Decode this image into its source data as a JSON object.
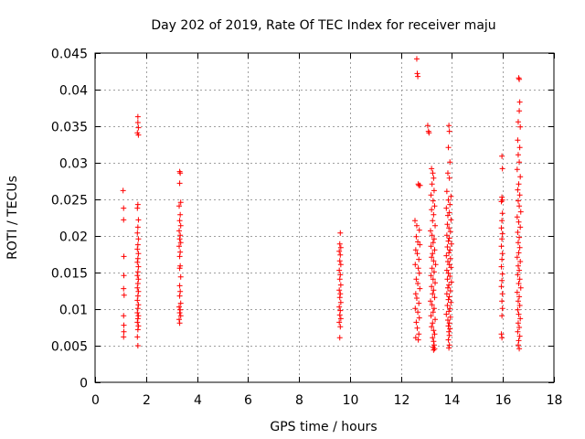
{
  "chart_data": {
    "type": "scatter",
    "title": "Day 202 of 2019, Rate Of TEC Index for receiver maju",
    "xlabel": "GPS time / hours",
    "ylabel": "ROTI / TECUs",
    "xlim": [
      0,
      18
    ],
    "ylim": [
      0,
      0.045
    ],
    "xticks": [
      0,
      2,
      4,
      6,
      8,
      10,
      12,
      14,
      16,
      18
    ],
    "xtick_labels": [
      "0",
      "2",
      "4",
      "6",
      "8",
      "10",
      "12",
      "14",
      "16",
      "18"
    ],
    "yticks": [
      0,
      0.005,
      0.01,
      0.015,
      0.02,
      0.025,
      0.03,
      0.035,
      0.04,
      0.045
    ],
    "ytick_labels": [
      "0",
      "0.005",
      "0.01",
      "0.015",
      "0.02",
      "0.025",
      "0.03",
      "0.035",
      "0.04",
      "0.045"
    ],
    "grid": true,
    "marker": "+",
    "color": "#ff0000",
    "series": [
      {
        "name": "ROTI",
        "points": [
          [
            1.1,
            0.0262
          ],
          [
            1.12,
            0.0238
          ],
          [
            1.12,
            0.0222
          ],
          [
            1.13,
            0.0172
          ],
          [
            1.13,
            0.0146
          ],
          [
            1.12,
            0.0128
          ],
          [
            1.14,
            0.0119
          ],
          [
            1.12,
            0.0091
          ],
          [
            1.13,
            0.0078
          ],
          [
            1.13,
            0.0069
          ],
          [
            1.12,
            0.0062
          ],
          [
            1.68,
            0.0363
          ],
          [
            1.68,
            0.0355
          ],
          [
            1.7,
            0.0348
          ],
          [
            1.66,
            0.0341
          ],
          [
            1.7,
            0.0338
          ],
          [
            1.68,
            0.0243
          ],
          [
            1.66,
            0.0238
          ],
          [
            1.7,
            0.0222
          ],
          [
            1.68,
            0.0212
          ],
          [
            1.66,
            0.0204
          ],
          [
            1.7,
            0.0196
          ],
          [
            1.68,
            0.0188
          ],
          [
            1.66,
            0.0182
          ],
          [
            1.7,
            0.0176
          ],
          [
            1.68,
            0.0169
          ],
          [
            1.66,
            0.0164
          ],
          [
            1.7,
            0.0158
          ],
          [
            1.68,
            0.0151
          ],
          [
            1.66,
            0.0146
          ],
          [
            1.7,
            0.0141
          ],
          [
            1.68,
            0.0135
          ],
          [
            1.66,
            0.0129
          ],
          [
            1.7,
            0.0124
          ],
          [
            1.68,
            0.0118
          ],
          [
            1.66,
            0.0112
          ],
          [
            1.7,
            0.0106
          ],
          [
            1.68,
            0.0101
          ],
          [
            1.66,
            0.0095
          ],
          [
            1.7,
            0.0091
          ],
          [
            1.68,
            0.0087
          ],
          [
            1.66,
            0.0082
          ],
          [
            1.7,
            0.0077
          ],
          [
            1.68,
            0.0072
          ],
          [
            1.66,
            0.0062
          ],
          [
            1.68,
            0.005
          ],
          [
            3.32,
            0.0288
          ],
          [
            3.34,
            0.0286
          ],
          [
            3.32,
            0.0272
          ],
          [
            3.36,
            0.0246
          ],
          [
            3.3,
            0.0241
          ],
          [
            3.34,
            0.0229
          ],
          [
            3.32,
            0.0221
          ],
          [
            3.36,
            0.0214
          ],
          [
            3.3,
            0.0207
          ],
          [
            3.34,
            0.0201
          ],
          [
            3.32,
            0.0196
          ],
          [
            3.36,
            0.0191
          ],
          [
            3.3,
            0.0186
          ],
          [
            3.34,
            0.0178
          ],
          [
            3.32,
            0.0172
          ],
          [
            3.34,
            0.0159
          ],
          [
            3.32,
            0.0156
          ],
          [
            3.36,
            0.0144
          ],
          [
            3.32,
            0.0132
          ],
          [
            3.34,
            0.0124
          ],
          [
            3.32,
            0.0118
          ],
          [
            3.36,
            0.0108
          ],
          [
            3.3,
            0.0103
          ],
          [
            3.34,
            0.0099
          ],
          [
            3.32,
            0.0095
          ],
          [
            3.36,
            0.0091
          ],
          [
            3.3,
            0.0086
          ],
          [
            3.32,
            0.0081
          ],
          [
            9.62,
            0.0204
          ],
          [
            9.6,
            0.0189
          ],
          [
            9.64,
            0.0184
          ],
          [
            9.58,
            0.0179
          ],
          [
            9.62,
            0.0174
          ],
          [
            9.6,
            0.0166
          ],
          [
            9.64,
            0.0161
          ],
          [
            9.58,
            0.0153
          ],
          [
            9.62,
            0.0147
          ],
          [
            9.6,
            0.0141
          ],
          [
            9.64,
            0.0133
          ],
          [
            9.58,
            0.0126
          ],
          [
            9.62,
            0.0121
          ],
          [
            9.6,
            0.0116
          ],
          [
            9.64,
            0.0109
          ],
          [
            9.58,
            0.0103
          ],
          [
            9.62,
            0.0098
          ],
          [
            9.6,
            0.0092
          ],
          [
            9.64,
            0.0087
          ],
          [
            9.58,
            0.0082
          ],
          [
            9.62,
            0.0076
          ],
          [
            9.6,
            0.0061
          ],
          [
            12.62,
            0.0442
          ],
          [
            12.64,
            0.0422
          ],
          [
            12.66,
            0.0418
          ],
          [
            12.68,
            0.0271
          ],
          [
            12.75,
            0.0269
          ],
          [
            12.7,
            0.0269
          ],
          [
            12.55,
            0.0221
          ],
          [
            12.62,
            0.0214
          ],
          [
            12.72,
            0.0208
          ],
          [
            12.6,
            0.0199
          ],
          [
            12.66,
            0.0192
          ],
          [
            12.74,
            0.0188
          ],
          [
            12.58,
            0.0181
          ],
          [
            12.64,
            0.0176
          ],
          [
            12.7,
            0.0168
          ],
          [
            12.56,
            0.0161
          ],
          [
            12.68,
            0.0156
          ],
          [
            12.72,
            0.0149
          ],
          [
            12.6,
            0.0141
          ],
          [
            12.66,
            0.0135
          ],
          [
            12.74,
            0.0128
          ],
          [
            12.58,
            0.0121
          ],
          [
            12.62,
            0.0115
          ],
          [
            12.7,
            0.0108
          ],
          [
            12.56,
            0.0101
          ],
          [
            12.66,
            0.0096
          ],
          [
            12.72,
            0.0088
          ],
          [
            12.6,
            0.0082
          ],
          [
            12.64,
            0.0074
          ],
          [
            12.7,
            0.0066
          ],
          [
            12.58,
            0.0061
          ],
          [
            12.68,
            0.0058
          ],
          [
            13.05,
            0.0351
          ],
          [
            13.08,
            0.0343
          ],
          [
            13.1,
            0.0341
          ],
          [
            13.2,
            0.0292
          ],
          [
            13.25,
            0.0286
          ],
          [
            13.28,
            0.0279
          ],
          [
            13.22,
            0.0271
          ],
          [
            13.3,
            0.0262
          ],
          [
            13.18,
            0.0256
          ],
          [
            13.26,
            0.0248
          ],
          [
            13.32,
            0.0241
          ],
          [
            13.2,
            0.0236
          ],
          [
            13.28,
            0.0229
          ],
          [
            13.24,
            0.0221
          ],
          [
            13.34,
            0.0214
          ],
          [
            13.16,
            0.0207
          ],
          [
            13.22,
            0.0201
          ],
          [
            13.3,
            0.0196
          ],
          [
            13.26,
            0.0191
          ],
          [
            13.18,
            0.0186
          ],
          [
            13.32,
            0.0181
          ],
          [
            13.24,
            0.0176
          ],
          [
            13.2,
            0.0171
          ],
          [
            13.28,
            0.0166
          ],
          [
            13.36,
            0.0161
          ],
          [
            13.22,
            0.0156
          ],
          [
            13.3,
            0.0151
          ],
          [
            13.18,
            0.0146
          ],
          [
            13.26,
            0.0141
          ],
          [
            13.34,
            0.0136
          ],
          [
            13.2,
            0.0131
          ],
          [
            13.28,
            0.0126
          ],
          [
            13.24,
            0.0121
          ],
          [
            13.32,
            0.0116
          ],
          [
            13.16,
            0.0111
          ],
          [
            13.22,
            0.0106
          ],
          [
            13.3,
            0.0101
          ],
          [
            13.26,
            0.0096
          ],
          [
            13.18,
            0.0091
          ],
          [
            13.34,
            0.0086
          ],
          [
            13.24,
            0.0081
          ],
          [
            13.2,
            0.0076
          ],
          [
            13.28,
            0.0071
          ],
          [
            13.32,
            0.0066
          ],
          [
            13.24,
            0.0061
          ],
          [
            13.28,
            0.0056
          ],
          [
            13.3,
            0.0051
          ],
          [
            13.26,
            0.0048
          ],
          [
            13.32,
            0.0046
          ],
          [
            13.28,
            0.0044
          ],
          [
            13.88,
            0.0351
          ],
          [
            13.9,
            0.0343
          ],
          [
            13.86,
            0.0321
          ],
          [
            13.92,
            0.0301
          ],
          [
            13.84,
            0.0286
          ],
          [
            13.9,
            0.0279
          ],
          [
            13.8,
            0.0261
          ],
          [
            13.96,
            0.0254
          ],
          [
            13.86,
            0.0249
          ],
          [
            13.92,
            0.0243
          ],
          [
            13.78,
            0.0238
          ],
          [
            13.9,
            0.0232
          ],
          [
            13.84,
            0.0228
          ],
          [
            13.96,
            0.0222
          ],
          [
            13.82,
            0.0216
          ],
          [
            13.88,
            0.0211
          ],
          [
            13.94,
            0.0206
          ],
          [
            13.8,
            0.0201
          ],
          [
            13.9,
            0.0197
          ],
          [
            13.86,
            0.0193
          ],
          [
            13.98,
            0.0189
          ],
          [
            13.82,
            0.0185
          ],
          [
            13.92,
            0.0181
          ],
          [
            13.88,
            0.0177
          ],
          [
            13.78,
            0.0173
          ],
          [
            13.94,
            0.0169
          ],
          [
            13.84,
            0.0165
          ],
          [
            13.9,
            0.0161
          ],
          [
            13.96,
            0.0157
          ],
          [
            13.8,
            0.0153
          ],
          [
            13.86,
            0.0149
          ],
          [
            13.92,
            0.0145
          ],
          [
            13.82,
            0.0141
          ],
          [
            13.98,
            0.0137
          ],
          [
            13.88,
            0.0133
          ],
          [
            13.84,
            0.0129
          ],
          [
            13.94,
            0.0125
          ],
          [
            13.8,
            0.0121
          ],
          [
            13.9,
            0.0117
          ],
          [
            13.86,
            0.0113
          ],
          [
            13.96,
            0.0109
          ],
          [
            13.82,
            0.0105
          ],
          [
            13.92,
            0.0101
          ],
          [
            13.88,
            0.0097
          ],
          [
            13.78,
            0.0093
          ],
          [
            13.94,
            0.0089
          ],
          [
            13.84,
            0.0085
          ],
          [
            13.9,
            0.0081
          ],
          [
            13.86,
            0.0077
          ],
          [
            13.92,
            0.0073
          ],
          [
            13.88,
            0.0069
          ],
          [
            13.9,
            0.0064
          ],
          [
            13.86,
            0.0058
          ],
          [
            13.9,
            0.0051
          ],
          [
            13.88,
            0.0047
          ],
          [
            15.96,
            0.0309
          ],
          [
            15.98,
            0.0292
          ],
          [
            15.96,
            0.0253
          ],
          [
            15.98,
            0.0249
          ],
          [
            15.94,
            0.0247
          ],
          [
            15.98,
            0.0231
          ],
          [
            15.96,
            0.0221
          ],
          [
            15.94,
            0.0211
          ],
          [
            15.98,
            0.0203
          ],
          [
            15.96,
            0.0196
          ],
          [
            15.94,
            0.0186
          ],
          [
            15.98,
            0.0176
          ],
          [
            15.96,
            0.0168
          ],
          [
            15.94,
            0.0158
          ],
          [
            15.98,
            0.0148
          ],
          [
            15.96,
            0.0139
          ],
          [
            15.94,
            0.0131
          ],
          [
            15.98,
            0.0121
          ],
          [
            15.96,
            0.0111
          ],
          [
            15.98,
            0.0101
          ],
          [
            15.96,
            0.0091
          ],
          [
            15.94,
            0.0066
          ],
          [
            15.96,
            0.0061
          ],
          [
            16.62,
            0.0416
          ],
          [
            16.64,
            0.0414
          ],
          [
            16.66,
            0.0383
          ],
          [
            16.64,
            0.0371
          ],
          [
            16.6,
            0.0356
          ],
          [
            16.68,
            0.0349
          ],
          [
            16.58,
            0.0331
          ],
          [
            16.66,
            0.0321
          ],
          [
            16.6,
            0.0311
          ],
          [
            16.64,
            0.0301
          ],
          [
            16.56,
            0.0291
          ],
          [
            16.68,
            0.0281
          ],
          [
            16.62,
            0.0271
          ],
          [
            16.58,
            0.0263
          ],
          [
            16.66,
            0.0256
          ],
          [
            16.6,
            0.0248
          ],
          [
            16.64,
            0.0241
          ],
          [
            16.7,
            0.0233
          ],
          [
            16.56,
            0.0226
          ],
          [
            16.62,
            0.0219
          ],
          [
            16.68,
            0.0212
          ],
          [
            16.58,
            0.0205
          ],
          [
            16.64,
            0.0198
          ],
          [
            16.6,
            0.0191
          ],
          [
            16.66,
            0.0184
          ],
          [
            16.62,
            0.0177
          ],
          [
            16.56,
            0.0171
          ],
          [
            16.68,
            0.0165
          ],
          [
            16.6,
            0.0159
          ],
          [
            16.64,
            0.0153
          ],
          [
            16.58,
            0.0147
          ],
          [
            16.66,
            0.0141
          ],
          [
            16.62,
            0.0135
          ],
          [
            16.7,
            0.0129
          ],
          [
            16.56,
            0.0123
          ],
          [
            16.64,
            0.0117
          ],
          [
            16.6,
            0.0111
          ],
          [
            16.66,
            0.0105
          ],
          [
            16.58,
            0.0099
          ],
          [
            16.62,
            0.0093
          ],
          [
            16.68,
            0.0087
          ],
          [
            16.6,
            0.0081
          ],
          [
            16.64,
            0.0075
          ],
          [
            16.58,
            0.0069
          ],
          [
            16.66,
            0.0063
          ],
          [
            16.62,
            0.0057
          ],
          [
            16.6,
            0.0051
          ],
          [
            16.64,
            0.0046
          ]
        ]
      }
    ]
  }
}
